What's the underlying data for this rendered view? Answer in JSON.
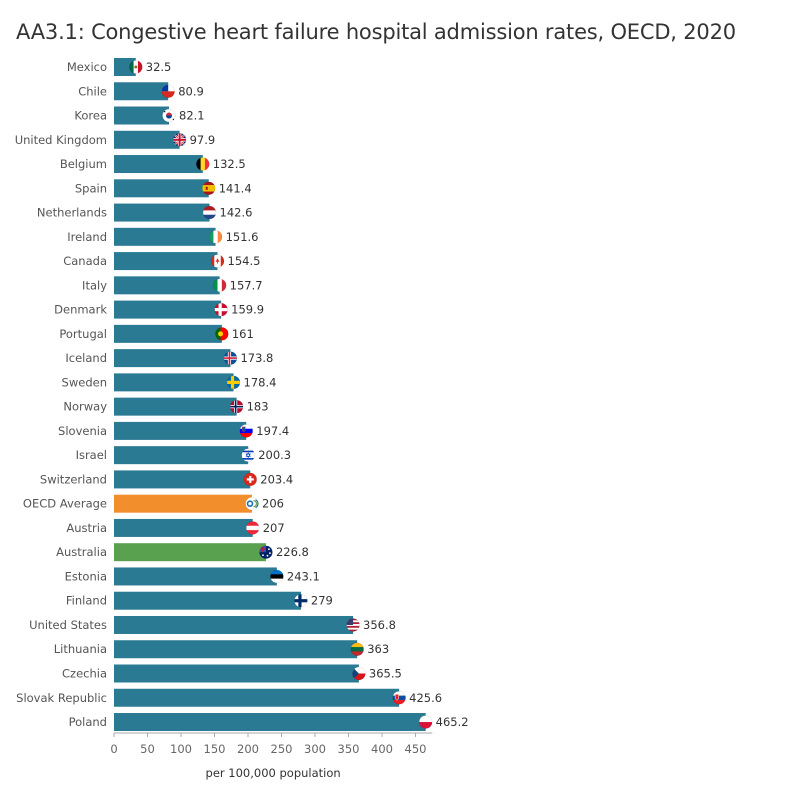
{
  "title": "AA3.1: Congestive heart failure hospital admission rates, OECD, 2020",
  "chart_data": {
    "type": "bar",
    "orientation": "horizontal",
    "categories": [
      "Mexico",
      "Chile",
      "Korea",
      "United Kingdom",
      "Belgium",
      "Spain",
      "Netherlands",
      "Ireland",
      "Canada",
      "Italy",
      "Denmark",
      "Portugal",
      "Iceland",
      "Sweden",
      "Norway",
      "Slovenia",
      "Israel",
      "Switzerland",
      "OECD Average",
      "Austria",
      "Australia",
      "Estonia",
      "Finland",
      "United States",
      "Lithuania",
      "Czechia",
      "Slovak Republic",
      "Poland"
    ],
    "values": [
      32.5,
      80.9,
      82.1,
      97.9,
      132.5,
      141.4,
      142.6,
      151.6,
      154.5,
      157.7,
      159.9,
      161,
      173.8,
      178.4,
      183,
      197.4,
      200.3,
      203.4,
      206,
      207,
      226.8,
      243.1,
      279,
      356.8,
      363,
      365.5,
      425.6,
      465.2
    ],
    "value_labels": [
      "32.5",
      "80.9",
      "82.1",
      "97.9",
      "132.5",
      "141.4",
      "142.6",
      "151.6",
      "154.5",
      "157.7",
      "159.9",
      "161",
      "173.8",
      "178.4",
      "183",
      "197.4",
      "200.3",
      "203.4",
      "206",
      "207",
      "226.8",
      "243.1",
      "279",
      "356.8",
      "363",
      "365.5",
      "425.6",
      "465.2"
    ],
    "xlabel": "per 100,000 population",
    "ylabel": "",
    "xlim": [
      0,
      475
    ],
    "x_ticks": [
      0,
      50,
      100,
      150,
      200,
      250,
      300,
      350,
      400,
      450
    ],
    "grid": false,
    "legend": "none",
    "colors": {
      "default": "#2a7a93",
      "OECD Average": "#f28e2b",
      "Australia": "#59a14f",
      "axis": "#aaaaaa"
    },
    "flags": {
      "Mexico": "mexico-flag-icon",
      "Chile": "chile-flag-icon",
      "Korea": "korea-flag-icon",
      "United Kingdom": "united-kingdom-flag-icon",
      "Belgium": "belgium-flag-icon",
      "Spain": "spain-flag-icon",
      "Netherlands": "netherlands-flag-icon",
      "Ireland": "ireland-flag-icon",
      "Canada": "canada-flag-icon",
      "Italy": "italy-flag-icon",
      "Denmark": "denmark-flag-icon",
      "Portugal": "portugal-flag-icon",
      "Iceland": "iceland-flag-icon",
      "Sweden": "sweden-flag-icon",
      "Norway": "norway-flag-icon",
      "Slovenia": "slovenia-flag-icon",
      "Israel": "israel-flag-icon",
      "Switzerland": "switzerland-flag-icon",
      "OECD Average": "oecd-logo-icon",
      "Austria": "austria-flag-icon",
      "Australia": "australia-flag-icon",
      "Estonia": "estonia-flag-icon",
      "Finland": "finland-flag-icon",
      "United States": "united-states-flag-icon",
      "Lithuania": "lithuania-flag-icon",
      "Czechia": "czechia-flag-icon",
      "Slovak Republic": "slovak-republic-flag-icon",
      "Poland": "poland-flag-icon"
    }
  }
}
